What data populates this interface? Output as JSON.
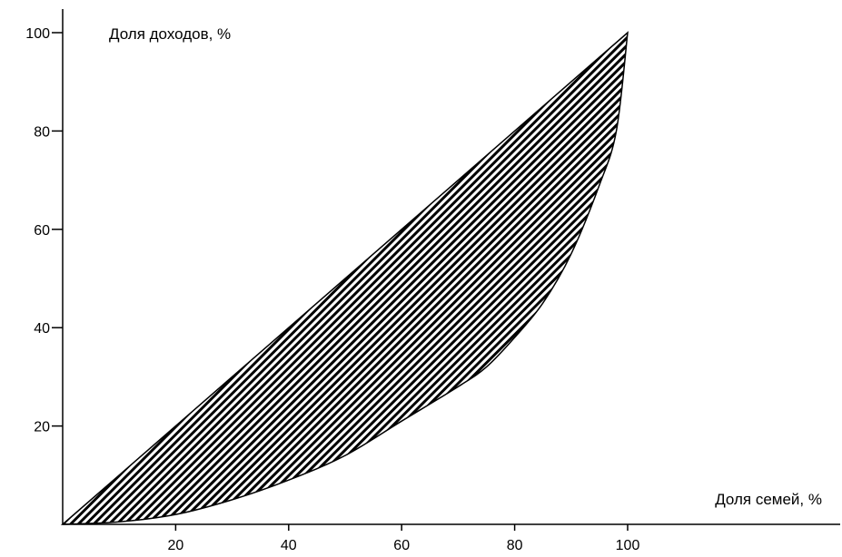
{
  "chart_data": {
    "type": "area",
    "title": "",
    "xlabel": "Доля семей, %",
    "ylabel": "Доля доходов, %",
    "xlim": [
      0,
      100
    ],
    "ylim": [
      0,
      100
    ],
    "x_ticks": [
      20,
      40,
      60,
      80,
      100
    ],
    "x_tick_labels": [
      "20",
      "40",
      "60",
      "80",
      "100"
    ],
    "y_ticks": [
      20,
      40,
      60,
      80,
      100
    ],
    "y_tick_labels": [
      "20",
      "40",
      "60",
      "80",
      "100"
    ],
    "grid": false,
    "series": [
      {
        "values_x": [
          0,
          100
        ],
        "values_y": [
          0,
          100
        ]
      },
      {
        "values_x": [
          0,
          10,
          20,
          30,
          40,
          50,
          60,
          70,
          75,
          80,
          85,
          90,
          95,
          98,
          100
        ],
        "values_y": [
          0,
          0.5,
          2,
          5,
          9,
          14,
          21,
          28,
          32,
          38,
          45,
          55,
          69,
          80,
          100
        ]
      }
    ],
    "fill_between_series": true,
    "fill_pattern": "diagonal-hatch",
    "colors": {
      "line": "#000000",
      "hatch": "#000000",
      "background": "#ffffff"
    }
  }
}
